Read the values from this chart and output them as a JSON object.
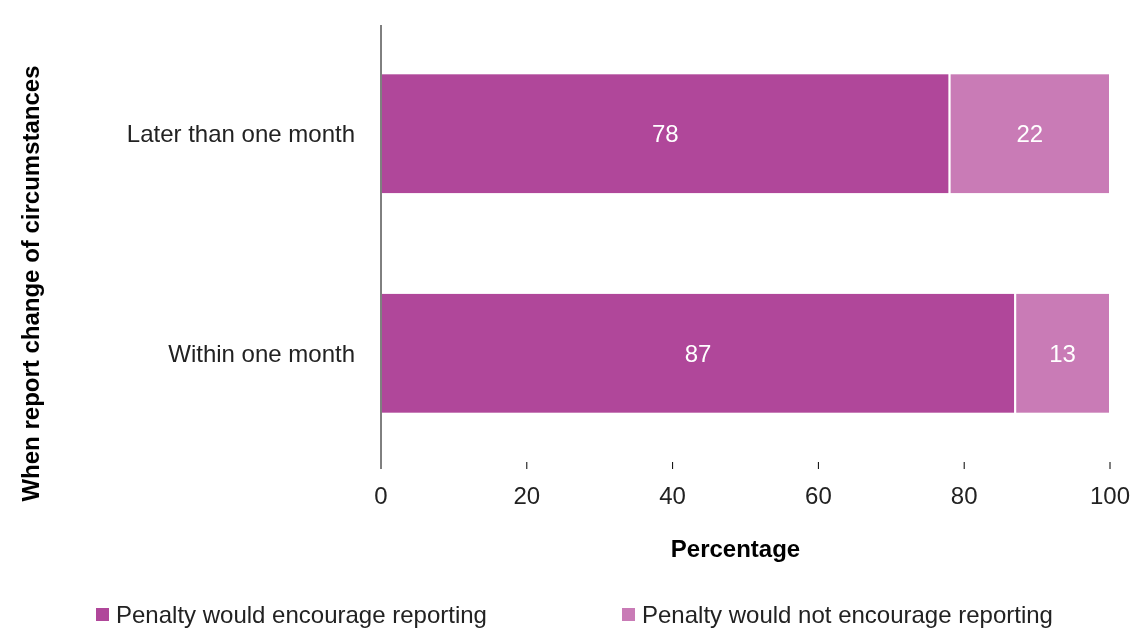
{
  "chart_data": {
    "type": "bar",
    "orientation": "horizontal",
    "stacked": true,
    "categories": [
      "Later than one month",
      "Within one month"
    ],
    "series": [
      {
        "name": "Penalty would encourage reporting",
        "color": "#b0479a",
        "values": [
          78,
          87
        ]
      },
      {
        "name": "Penalty would not encourage reporting",
        "color": "#c97bb6",
        "values": [
          22,
          13
        ]
      }
    ],
    "xlim": [
      0,
      100
    ],
    "xticks": [
      0,
      20,
      40,
      60,
      80,
      100
    ],
    "xlabel": "Percentage",
    "ylabel": "When report change of circumstances",
    "data_labels": true,
    "legend": "bottom",
    "grid": false
  }
}
